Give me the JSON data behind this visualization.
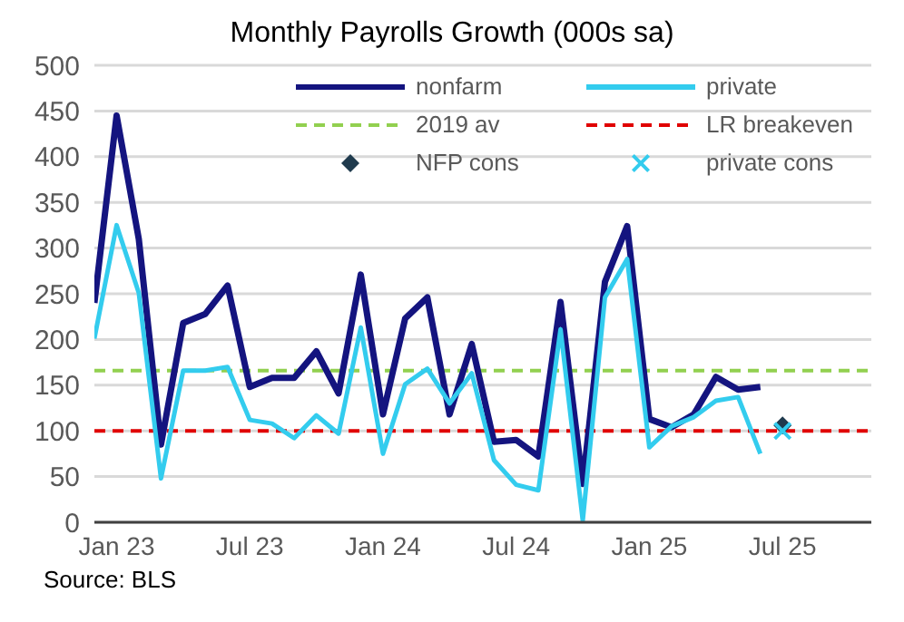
{
  "chart_data": {
    "type": "line",
    "title": "Monthly Payrolls Growth (000s sa)",
    "x": [
      "2022-12",
      "2023-01",
      "2023-02",
      "2023-03",
      "2023-04",
      "2023-05",
      "2023-06",
      "2023-07",
      "2023-08",
      "2023-09",
      "2023-10",
      "2023-11",
      "2023-12",
      "2024-01",
      "2024-02",
      "2024-03",
      "2024-04",
      "2024-05",
      "2024-06",
      "2024-07",
      "2024-08",
      "2024-09",
      "2024-10",
      "2024-11",
      "2024-12",
      "2025-01",
      "2025-02",
      "2025-03",
      "2025-04",
      "2025-05",
      "2025-06"
    ],
    "series": [
      {
        "name": "nonfarm",
        "color": "#14147f",
        "values": [
          240,
          445,
          310,
          85,
          218,
          228,
          259,
          148,
          158,
          158,
          187,
          141,
          271,
          118,
          223,
          246,
          118,
          195,
          88,
          90,
          72,
          241,
          42,
          263,
          324,
          113,
          104,
          118,
          159,
          145,
          148
        ]
      },
      {
        "name": "private",
        "color": "#33ccee",
        "values": [
          201,
          325,
          251,
          48,
          166,
          166,
          170,
          112,
          108,
          92,
          117,
          97,
          213,
          75,
          151,
          168,
          130,
          163,
          68,
          41,
          35,
          211,
          2,
          246,
          288,
          82,
          105,
          115,
          133,
          137,
          75
        ]
      },
      {
        "name": "NFP cons",
        "type": "scatter",
        "marker": "diamond",
        "color": "#1f3a4d",
        "x": [
          "2025-07"
        ],
        "values": [
          106
        ]
      },
      {
        "name": "private cons",
        "type": "scatter",
        "marker": "cross",
        "color": "#33ccee",
        "x": [
          "2025-07"
        ],
        "values": [
          100
        ]
      }
    ],
    "ref_lines": [
      {
        "axis": "y",
        "value": 166,
        "label": "2019 av",
        "color": "#92d050",
        "line_style": "dashed"
      },
      {
        "axis": "y",
        "value": 100,
        "label": "LR breakeven",
        "color": "#e00000",
        "line_style": "dashed"
      }
    ],
    "xlim": [
      "2022-12",
      "2025-11"
    ],
    "xticks": [
      {
        "value": "2023-01",
        "label": "Jan 23"
      },
      {
        "value": "2023-07",
        "label": "Jul 23"
      },
      {
        "value": "2024-01",
        "label": "Jan 24"
      },
      {
        "value": "2024-07",
        "label": "Jul 24"
      },
      {
        "value": "2025-01",
        "label": "Jan 25"
      },
      {
        "value": "2025-07",
        "label": "Jul 25"
      }
    ],
    "ylim": [
      0,
      500
    ],
    "yticks": [
      0,
      50,
      100,
      150,
      200,
      250,
      300,
      350,
      400,
      450,
      500
    ],
    "grid": "y",
    "legend": "top",
    "annotations": [
      "Source: BLS"
    ]
  }
}
